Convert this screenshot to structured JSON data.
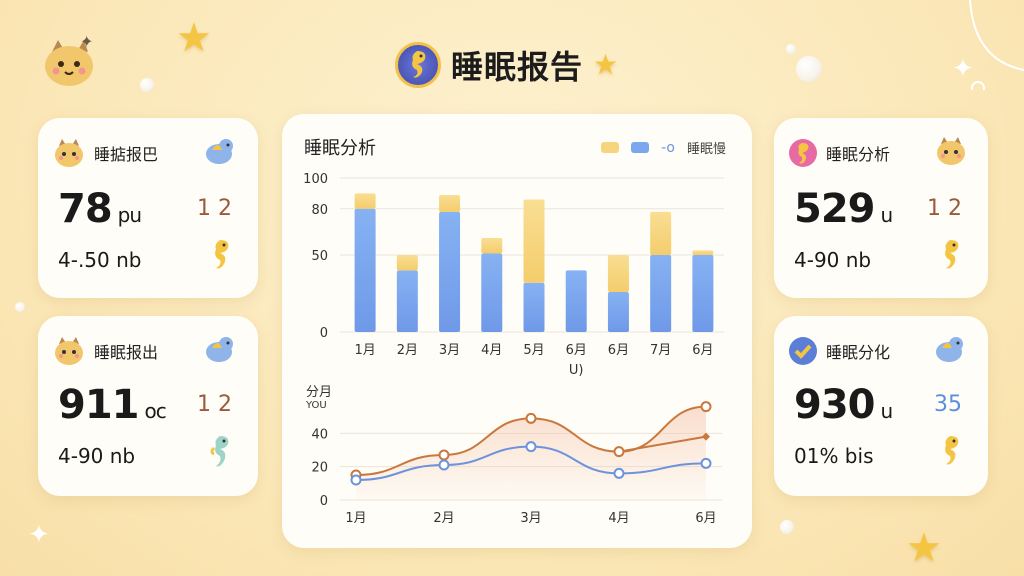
{
  "title": "睡眠报告",
  "cards": [
    {
      "id": "c1",
      "label": "睡掂报巴",
      "value": "78",
      "unit": "pu",
      "side": "1 2",
      "sub": "4-.50 nb"
    },
    {
      "id": "c2",
      "label": "睡眠报出",
      "value": "911",
      "unit": "oc",
      "side": "1 2",
      "sub": "4-90 nb"
    },
    {
      "id": "c3",
      "label": "睡眠分析",
      "value": "529",
      "unit": "u",
      "side": "1 2",
      "sub": "4-90 nb"
    },
    {
      "id": "c4",
      "label": "睡眠分化",
      "value": "930",
      "unit": "u",
      "side": "35",
      "sub": "01% bis"
    }
  ],
  "main_card": {
    "title": "睡眠分析",
    "legend_label": "睡眠慢",
    "colors": {
      "gold": "#f7d57e",
      "blue": "#7aa7ee",
      "line_orange": "#c9773c",
      "line_blue": "#6d93dc",
      "side_blue": "#5b8fde"
    }
  },
  "chart_data": [
    {
      "type": "bar",
      "stacked": true,
      "categories": [
        "1月",
        "2月",
        "3月",
        "4月",
        "5月",
        "6月",
        "6月",
        "7月",
        "6月"
      ],
      "series": [
        {
          "values": [
            80,
            40,
            78,
            51,
            32,
            40,
            26,
            50,
            50
          ]
        },
        {
          "values": [
            10,
            10,
            11,
            10,
            54,
            0,
            24,
            28,
            3
          ]
        }
      ],
      "yticks": [
        0,
        50,
        80,
        100
      ],
      "ylim": [
        0,
        100
      ],
      "xlabel": "U)",
      "grid": true
    },
    {
      "type": "line",
      "x": [
        "1月",
        "2月",
        "3月",
        "4月",
        "6月"
      ],
      "series": [
        {
          "values": [
            15,
            27,
            49,
            29,
            56
          ]
        },
        {
          "values": [
            12,
            21,
            32,
            16,
            22
          ]
        }
      ],
      "extra_point": {
        "x_index": 4,
        "value": 38
      },
      "ylabel": "分月",
      "ylabel2": "YOU",
      "yticks": [
        0,
        20,
        40
      ],
      "ylim": [
        0,
        60
      ],
      "grid": true
    }
  ]
}
